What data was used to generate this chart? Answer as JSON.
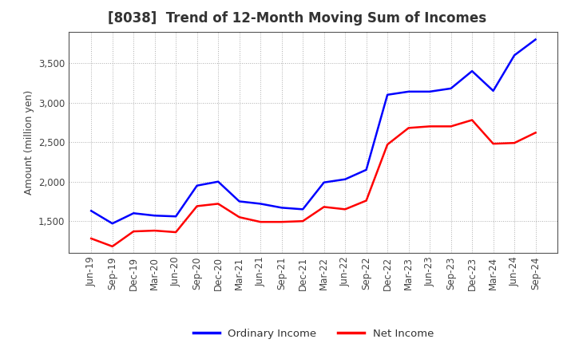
{
  "title": "[8038]  Trend of 12-Month Moving Sum of Incomes",
  "ylabel": "Amount (million yen)",
  "x_labels": [
    "Jun-19",
    "Sep-19",
    "Dec-19",
    "Mar-20",
    "Jun-20",
    "Sep-20",
    "Dec-20",
    "Mar-21",
    "Jun-21",
    "Sep-21",
    "Dec-21",
    "Mar-22",
    "Jun-22",
    "Sep-22",
    "Dec-22",
    "Mar-23",
    "Jun-23",
    "Sep-23",
    "Dec-23",
    "Mar-24",
    "Jun-24",
    "Sep-24"
  ],
  "ordinary_income": [
    1630,
    1470,
    1600,
    1570,
    1560,
    1950,
    2000,
    1750,
    1720,
    1670,
    1650,
    1990,
    2030,
    2150,
    3100,
    3140,
    3140,
    3180,
    3400,
    3150,
    3600,
    3800
  ],
  "net_income": [
    1280,
    1180,
    1370,
    1380,
    1360,
    1690,
    1720,
    1550,
    1490,
    1490,
    1500,
    1680,
    1650,
    1760,
    2470,
    2680,
    2700,
    2700,
    2780,
    2480,
    2490,
    2620
  ],
  "ordinary_income_color": "#0000ff",
  "net_income_color": "#ff0000",
  "background_color": "#ffffff",
  "plot_bg_color": "#ffffff",
  "grid_color": "#999999",
  "ylim": [
    1100,
    3900
  ],
  "yticks": [
    1500,
    2000,
    2500,
    3000,
    3500
  ],
  "legend_labels": [
    "Ordinary Income",
    "Net Income"
  ],
  "line_width": 1.8,
  "title_fontsize": 12,
  "axis_fontsize": 9,
  "tick_fontsize": 8.5
}
